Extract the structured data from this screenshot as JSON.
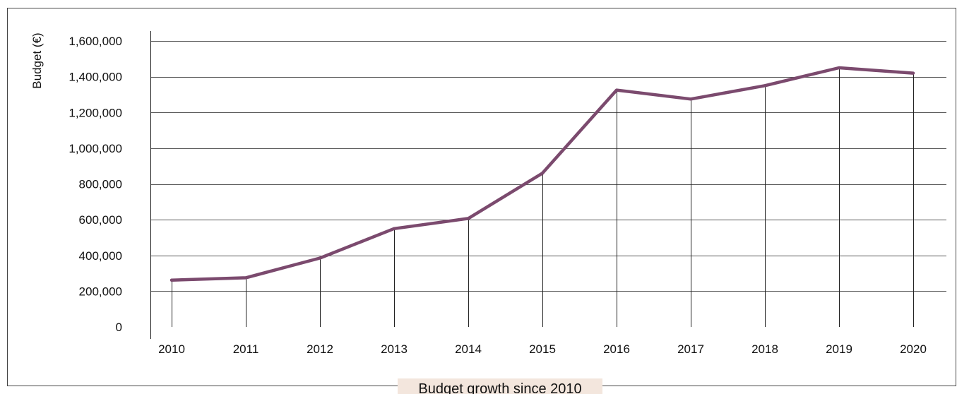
{
  "chart_data": {
    "type": "line",
    "title": "Budget growth since 2010",
    "xlabel": "",
    "ylabel": "Budget (€)",
    "ylim": [
      0,
      1600000
    ],
    "yticks": [
      0,
      200000,
      400000,
      600000,
      800000,
      1000000,
      1200000,
      1400000,
      1600000
    ],
    "ytick_labels": [
      "0",
      "200,000",
      "400,000",
      "600,000",
      "800,000",
      "1,000,000",
      "1,200,000",
      "1,400,000",
      "1,600,000"
    ],
    "grid": true,
    "x": [
      "2010",
      "2011",
      "2012",
      "2013",
      "2014",
      "2015",
      "2016",
      "2017",
      "2018",
      "2019",
      "2020"
    ],
    "series": [
      {
        "values": [
          262000,
          275000,
          385000,
          550000,
          607000,
          860000,
          1325000,
          1275000,
          1350000,
          1450000,
          1420000
        ],
        "color": "#7b4a6e"
      }
    ]
  }
}
